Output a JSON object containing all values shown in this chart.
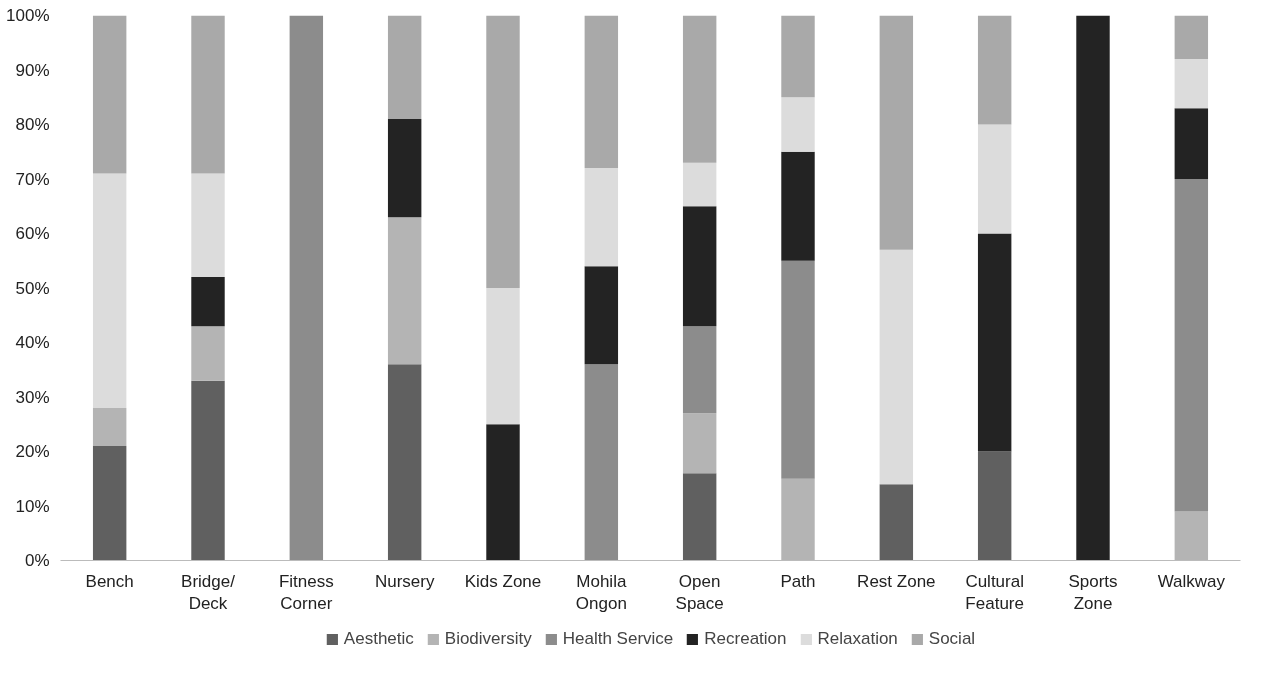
{
  "chart_data": {
    "type": "bar",
    "stacked": true,
    "categories": [
      "Bench",
      "Bridge/\nDeck",
      "Fitness\nCorner",
      "Nursery",
      "Kids Zone",
      "Mohila\nOngon",
      "Open\nSpace",
      "Path",
      "Rest Zone",
      "Cultural\nFeature",
      "Sports\nZone",
      "Walkway"
    ],
    "series": [
      {
        "name": "Aesthetic",
        "color": "#606060",
        "values": [
          21,
          33,
          0,
          36,
          0,
          0,
          16,
          0,
          14,
          20,
          0,
          0
        ]
      },
      {
        "name": "Biodiversity",
        "color": "#b4b4b4",
        "values": [
          7,
          10,
          0,
          27,
          0,
          0,
          11,
          15,
          0,
          0,
          0,
          9
        ]
      },
      {
        "name": "Health Service",
        "color": "#8c8c8c",
        "values": [
          0,
          0,
          100,
          0,
          0,
          36,
          16,
          40,
          0,
          0,
          0,
          61
        ]
      },
      {
        "name": "Recreation",
        "color": "#232323",
        "values": [
          0,
          9,
          0,
          18,
          25,
          18,
          22,
          20,
          0,
          40,
          100,
          13
        ]
      },
      {
        "name": "Relaxation",
        "color": "#dcdcdc",
        "values": [
          43,
          19,
          0,
          0,
          25,
          18,
          8,
          10,
          43,
          20,
          0,
          9
        ]
      },
      {
        "name": "Social",
        "color": "#a9a9a9",
        "values": [
          29,
          29,
          0,
          19,
          50,
          28,
          27,
          15,
          43,
          20,
          0,
          8
        ]
      }
    ],
    "ylim": [
      0,
      100
    ],
    "yticks": [
      {
        "value": 0,
        "label": "0%"
      },
      {
        "value": 10,
        "label": "10%"
      },
      {
        "value": 20,
        "label": "20%"
      },
      {
        "value": 30,
        "label": "30%"
      },
      {
        "value": 40,
        "label": "40%"
      },
      {
        "value": 50,
        "label": "50%"
      },
      {
        "value": 60,
        "label": "60%"
      },
      {
        "value": 70,
        "label": "70%"
      },
      {
        "value": 80,
        "label": "80%"
      },
      {
        "value": 90,
        "label": "90%"
      },
      {
        "value": 100,
        "label": "100%"
      }
    ],
    "grid": false,
    "legend": "bottom"
  }
}
